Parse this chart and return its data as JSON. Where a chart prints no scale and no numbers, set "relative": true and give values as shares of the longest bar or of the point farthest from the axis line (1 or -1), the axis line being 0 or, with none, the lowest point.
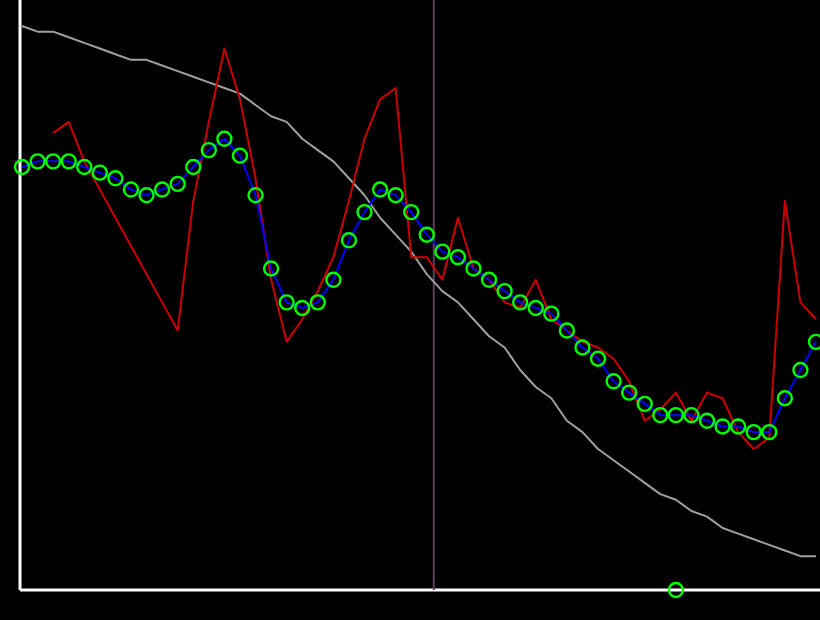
{
  "chart_data": {
    "type": "line",
    "relative": true,
    "categories": [
      null,
      null,
      null,
      null,
      null,
      null,
      null,
      null,
      null,
      null,
      null,
      null,
      null,
      null,
      null,
      null,
      null,
      null,
      null,
      null,
      null,
      null,
      null,
      null,
      null,
      null,
      null,
      null,
      null,
      null,
      null,
      null,
      null,
      null,
      null,
      null,
      null,
      null,
      null,
      null,
      null,
      null,
      null,
      null,
      null,
      null,
      null,
      null,
      null,
      null,
      null,
      null
    ],
    "series": [
      {
        "color": "#a0a0a0",
        "values": [
          1.0,
          0.99,
          0.99,
          0.98,
          0.97,
          0.96,
          0.95,
          0.94,
          0.94,
          0.93,
          0.92,
          0.91,
          0.9,
          0.89,
          0.88,
          0.86,
          0.84,
          0.83,
          0.8,
          0.78,
          0.76,
          0.73,
          0.7,
          0.66,
          0.63,
          0.6,
          0.56,
          0.53,
          0.51,
          0.48,
          0.45,
          0.43,
          0.39,
          0.36,
          0.34,
          0.3,
          0.28,
          0.25,
          0.23,
          0.21,
          0.19,
          0.17,
          0.16,
          0.14,
          0.13,
          0.11,
          0.1,
          0.09,
          0.08,
          0.07,
          0.06,
          0.06
        ]
      },
      {
        "color": "#cc0000",
        "values": [
          null,
          null,
          0.81,
          0.83,
          0.76,
          0.71,
          0.66,
          0.61,
          0.56,
          0.51,
          0.46,
          0.69,
          0.83,
          0.96,
          0.87,
          0.73,
          0.55,
          0.44,
          0.48,
          0.53,
          0.59,
          0.69,
          0.8,
          0.87,
          0.89,
          0.59,
          0.59,
          0.55,
          0.66,
          0.57,
          0.55,
          0.51,
          0.5,
          0.55,
          0.48,
          0.46,
          0.44,
          0.43,
          0.41,
          0.37,
          0.3,
          0.32,
          0.35,
          0.3,
          0.35,
          0.34,
          0.28,
          0.25,
          0.27,
          0.69,
          0.51,
          0.48
        ]
      },
      {
        "color": "#0000ff",
        "marker": "circle",
        "colors": [
          "#00ff00",
          "#00ff00",
          "#00ff00",
          "#00ff00",
          "#00ff00",
          "#00ff00",
          "#00ff00",
          "#00ff00",
          "#00ff00",
          "#00ff00",
          "#00ff00",
          "#00ff00",
          "#00ff00",
          "#00ff00",
          "#00ff00",
          "#00ff00",
          "#00ff00",
          "#00ff00",
          "#00ff00",
          "#00ff00",
          "#00ff00",
          "#00ff00",
          "#00ff00",
          "#00ff00",
          "#00ff00",
          "#00ff00",
          "#00ff00",
          "#00ff00",
          "#00ff00",
          "#00ff00",
          "#00ff00",
          "#00ff00",
          "#00ff00",
          "#00ff00",
          "#00ff00",
          "#00ff00",
          "#00ff00",
          "#00ff00",
          "#00ff00",
          "#00ff00",
          "#00ff00",
          "#00ff00",
          "#00ff00",
          "#00ff00",
          "#00ff00",
          "#00ff00",
          "#00ff00",
          "#00ff00",
          "#00ff00",
          "#00ff00",
          "#00ff00",
          "#00ff00"
        ],
        "values": [
          0.75,
          0.76,
          0.76,
          0.76,
          0.75,
          0.74,
          0.73,
          0.71,
          0.7,
          0.71,
          0.72,
          0.75,
          0.78,
          0.8,
          0.77,
          0.7,
          0.57,
          0.51,
          0.5,
          0.51,
          0.55,
          0.62,
          0.67,
          0.71,
          0.7,
          0.67,
          0.63,
          0.6,
          0.59,
          0.57,
          0.55,
          0.53,
          0.51,
          0.5,
          0.49,
          0.46,
          0.43,
          0.41,
          0.37,
          0.35,
          0.33,
          0.31,
          0.31,
          0.31,
          0.3,
          0.29,
          0.29,
          0.28,
          0.28,
          0.34,
          0.39,
          0.44
        ]
      },
      {
        "color": "#00ff00",
        "marker": "circle",
        "values": [
          null,
          null,
          null,
          null,
          null,
          null,
          null,
          null,
          null,
          null,
          null,
          null,
          null,
          null,
          null,
          null,
          null,
          null,
          null,
          null,
          null,
          null,
          null,
          null,
          null,
          null,
          null,
          null,
          null,
          null,
          null,
          null,
          null,
          null,
          null,
          null,
          null,
          null,
          null,
          null,
          null,
          null,
          0,
          null,
          null,
          null,
          null,
          null,
          null,
          null,
          null,
          null
        ]
      }
    ]
  }
}
